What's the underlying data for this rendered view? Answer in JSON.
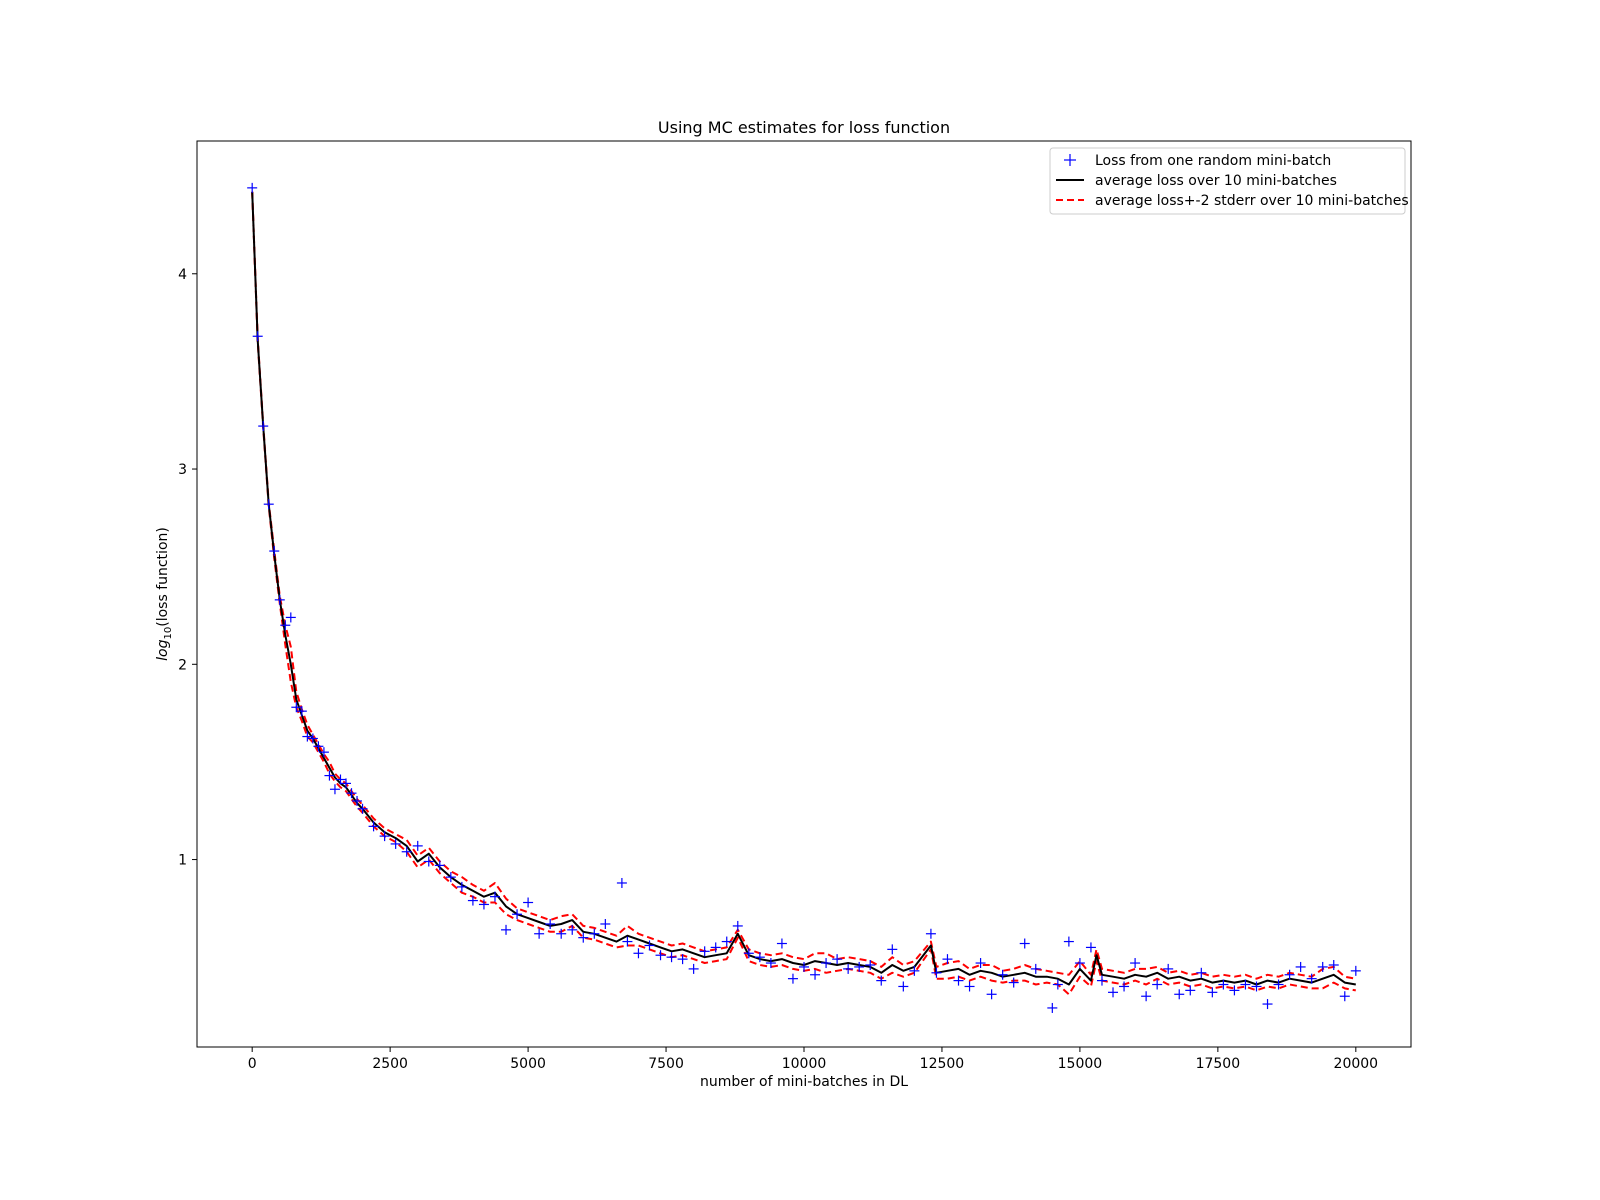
{
  "chart_data": {
    "type": "line",
    "title": "Using MC estimates for loss function",
    "xlabel": "number of mini-batches in DL",
    "ylabel_prefix": "log",
    "ylabel_sub": "10",
    "ylabel_suffix": "(loss function)",
    "xlim": [
      -1000,
      21000
    ],
    "ylim": [
      0.04,
      4.68
    ],
    "xticks": [
      0,
      2500,
      5000,
      7500,
      10000,
      12500,
      15000,
      17500,
      20000
    ],
    "xtick_labels": [
      "0",
      "2500",
      "5000",
      "7500",
      "10000",
      "12500",
      "15000",
      "17500",
      "20000"
    ],
    "yticks": [
      1,
      2,
      3,
      4
    ],
    "ytick_labels": [
      "1",
      "2",
      "3",
      "4"
    ],
    "grid": false,
    "legend_position": "top-right",
    "colors": {
      "scatter": "#0000ff",
      "average": "#000000",
      "band": "#ff0000"
    },
    "series": [
      {
        "name": "Loss from one random mini-batch",
        "kind": "scatter",
        "marker": "+",
        "x": [
          0,
          100,
          200,
          300,
          400,
          500,
          600,
          700,
          800,
          900,
          1000,
          1100,
          1200,
          1300,
          1400,
          1500,
          1600,
          1700,
          1800,
          1900,
          2000,
          2200,
          2400,
          2600,
          2800,
          3000,
          3200,
          3400,
          3600,
          3800,
          4000,
          4200,
          4400,
          4600,
          4800,
          5000,
          5200,
          5400,
          5600,
          5800,
          6000,
          6200,
          6400,
          6700,
          6800,
          7000,
          7200,
          7400,
          7600,
          7800,
          8000,
          8200,
          8400,
          8600,
          8800,
          9000,
          9200,
          9400,
          9600,
          9800,
          10000,
          10200,
          10400,
          10600,
          10800,
          11000,
          11200,
          11400,
          11600,
          11800,
          12000,
          12300,
          12400,
          12600,
          12800,
          13000,
          13200,
          13400,
          13600,
          13800,
          14000,
          14200,
          14500,
          14600,
          14800,
          15000,
          15200,
          15400,
          15600,
          15800,
          16000,
          16200,
          16400,
          16600,
          16800,
          17000,
          17200,
          17400,
          17600,
          17800,
          18000,
          18200,
          18400,
          18600,
          18800,
          19000,
          19200,
          19400,
          19600,
          19800,
          20000
        ],
        "y": [
          4.44,
          3.68,
          3.22,
          2.82,
          2.58,
          2.33,
          2.2,
          2.24,
          1.78,
          1.76,
          1.63,
          1.62,
          1.58,
          1.55,
          1.43,
          1.36,
          1.41,
          1.39,
          1.34,
          1.3,
          1.26,
          1.17,
          1.12,
          1.08,
          1.04,
          1.07,
          0.99,
          0.97,
          0.91,
          0.86,
          0.79,
          0.77,
          0.81,
          0.64,
          0.72,
          0.78,
          0.62,
          0.67,
          0.62,
          0.64,
          0.6,
          0.62,
          0.67,
          0.88,
          0.58,
          0.52,
          0.56,
          0.51,
          0.5,
          0.49,
          0.44,
          0.53,
          0.55,
          0.58,
          0.66,
          0.52,
          0.5,
          0.47,
          0.57,
          0.39,
          0.45,
          0.41,
          0.47,
          0.49,
          0.44,
          0.45,
          0.46,
          0.38,
          0.54,
          0.35,
          0.43,
          0.62,
          0.42,
          0.49,
          0.38,
          0.35,
          0.47,
          0.31,
          0.41,
          0.37,
          0.57,
          0.44,
          0.24,
          0.36,
          0.58,
          0.47,
          0.55,
          0.38,
          0.32,
          0.35,
          0.47,
          0.3,
          0.36,
          0.44,
          0.31,
          0.33,
          0.42,
          0.32,
          0.36,
          0.33,
          0.36,
          0.35,
          0.26,
          0.36,
          0.41,
          0.45,
          0.39,
          0.45,
          0.46,
          0.3,
          0.43
        ]
      },
      {
        "name": "average loss over 10 mini-batches",
        "kind": "line",
        "x": [
          0,
          100,
          200,
          300,
          400,
          500,
          600,
          700,
          800,
          900,
          1000,
          1100,
          1200,
          1300,
          1400,
          1500,
          1600,
          1700,
          1800,
          1900,
          2000,
          2200,
          2400,
          2600,
          2800,
          3000,
          3200,
          3400,
          3600,
          3800,
          4000,
          4200,
          4400,
          4600,
          4800,
          5000,
          5200,
          5400,
          5600,
          5800,
          6000,
          6200,
          6400,
          6600,
          6800,
          7000,
          7200,
          7400,
          7600,
          7800,
          8000,
          8200,
          8400,
          8600,
          8800,
          9000,
          9200,
          9400,
          9600,
          9800,
          10000,
          10200,
          10400,
          10600,
          10800,
          11000,
          11200,
          11400,
          11600,
          11800,
          12000,
          12300,
          12400,
          12600,
          12800,
          13000,
          13200,
          13400,
          13600,
          13800,
          14000,
          14200,
          14400,
          14600,
          14800,
          15000,
          15200,
          15300,
          15400,
          15600,
          15800,
          16000,
          16200,
          16400,
          16600,
          16800,
          17000,
          17200,
          17400,
          17600,
          17800,
          18000,
          18200,
          18400,
          18600,
          18800,
          19000,
          19200,
          19400,
          19600,
          19800,
          20000
        ],
        "y": [
          4.42,
          3.66,
          3.22,
          2.82,
          2.56,
          2.33,
          2.15,
          2.0,
          1.82,
          1.74,
          1.66,
          1.62,
          1.57,
          1.52,
          1.47,
          1.42,
          1.39,
          1.37,
          1.33,
          1.29,
          1.26,
          1.19,
          1.14,
          1.11,
          1.07,
          0.99,
          1.03,
          0.96,
          0.91,
          0.87,
          0.84,
          0.81,
          0.83,
          0.76,
          0.72,
          0.7,
          0.68,
          0.66,
          0.67,
          0.69,
          0.63,
          0.62,
          0.6,
          0.58,
          0.61,
          0.59,
          0.57,
          0.55,
          0.53,
          0.54,
          0.52,
          0.5,
          0.51,
          0.52,
          0.62,
          0.51,
          0.49,
          0.48,
          0.49,
          0.47,
          0.46,
          0.48,
          0.47,
          0.46,
          0.47,
          0.46,
          0.45,
          0.42,
          0.46,
          0.43,
          0.45,
          0.56,
          0.42,
          0.43,
          0.44,
          0.41,
          0.43,
          0.42,
          0.4,
          0.41,
          0.42,
          0.4,
          0.4,
          0.39,
          0.36,
          0.44,
          0.38,
          0.51,
          0.41,
          0.4,
          0.39,
          0.41,
          0.4,
          0.42,
          0.39,
          0.4,
          0.38,
          0.39,
          0.37,
          0.38,
          0.37,
          0.38,
          0.36,
          0.38,
          0.37,
          0.39,
          0.38,
          0.37,
          0.39,
          0.41,
          0.37,
          0.36
        ]
      }
    ],
    "band": {
      "name": "average loss+-2 stderr over 10 mini-batches",
      "kind": "dashed",
      "offsets": [
        0.0,
        0.01,
        0.01,
        0.01,
        0.02,
        0.02,
        0.05,
        0.09,
        0.04,
        0.03,
        0.03,
        0.02,
        0.02,
        0.02,
        0.03,
        0.02,
        0.02,
        0.02,
        0.02,
        0.02,
        0.02,
        0.02,
        0.02,
        0.02,
        0.03,
        0.03,
        0.03,
        0.03,
        0.03,
        0.04,
        0.03,
        0.03,
        0.05,
        0.04,
        0.03,
        0.03,
        0.03,
        0.03,
        0.04,
        0.03,
        0.03,
        0.03,
        0.03,
        0.03,
        0.05,
        0.03,
        0.03,
        0.03,
        0.03,
        0.03,
        0.03,
        0.03,
        0.03,
        0.03,
        0.02,
        0.03,
        0.03,
        0.03,
        0.03,
        0.03,
        0.03,
        0.04,
        0.05,
        0.03,
        0.03,
        0.03,
        0.03,
        0.03,
        0.04,
        0.03,
        0.03,
        0.02,
        0.03,
        0.04,
        0.04,
        0.03,
        0.03,
        0.04,
        0.03,
        0.03,
        0.04,
        0.04,
        0.03,
        0.03,
        0.05,
        0.04,
        0.03,
        0.03,
        0.03,
        0.03,
        0.03,
        0.03,
        0.04,
        0.03,
        0.03,
        0.03,
        0.03,
        0.03,
        0.03,
        0.03,
        0.03,
        0.03,
        0.03,
        0.03,
        0.03,
        0.03,
        0.03,
        0.03,
        0.05,
        0.04,
        0.03,
        0.03
      ]
    }
  }
}
